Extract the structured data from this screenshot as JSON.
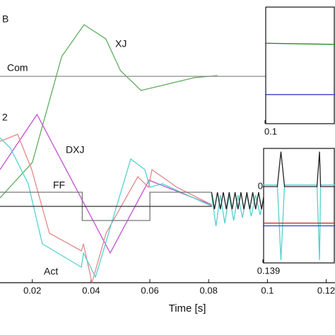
{
  "chart_data": [
    {
      "type": "line",
      "xlabel": "Time [s]",
      "xlim": [
        0.009,
        0.123
      ],
      "xticks": [
        0.02,
        0.04,
        0.06,
        0.08,
        0.1,
        0.12
      ],
      "ylim": [
        0,
        1
      ],
      "yticks": [],
      "labels": [
        "XJ",
        "Com",
        "DXJ",
        "FF",
        "Act",
        "2",
        "B"
      ],
      "series": [
        {
          "color": "#5fae5f",
          "x": [
            0.009,
            0.02,
            0.03,
            0.0376,
            0.045,
            0.05,
            0.057,
            0.065,
            0.075,
            0.083
          ],
          "values": [
            0.3,
            0.425,
            0.8,
            0.9125,
            0.8625,
            0.75,
            0.68,
            0.7,
            0.725,
            0.7325
          ]
        },
        {
          "color": "#8a8a8a",
          "x": [
            0.009,
            0.1
          ],
          "values": [
            0.73,
            0.73
          ]
        },
        {
          "color": "#c050d0",
          "x": [
            0.009,
            0.0216,
            0.0465,
            0.0597,
            0.081
          ],
          "values": [
            0.4,
            0.595,
            0.105,
            0.3625,
            0.275
          ]
        },
        {
          "color": "#e08a8a",
          "x": [
            0.009,
            0.015,
            0.0198,
            0.0258,
            0.0367,
            0.0374,
            0.0403,
            0.0451,
            0.0559,
            0.0595,
            0.0607,
            0.0692,
            0.0812
          ],
          "values": [
            0.5,
            0.525,
            0.4,
            0.175,
            0.1125,
            0.1375,
            0,
            0.175,
            0.375,
            0.3375,
            0.4,
            0.3375,
            0.275
          ]
        },
        {
          "color": "#55d0d0",
          "x": [
            0.009,
            0.0126,
            0.0186,
            0.0234,
            0.0367,
            0.0374,
            0.0415,
            0.0535,
            0.0583,
            0.06,
            0.0643,
            0.0812
          ],
          "values": [
            0.5125,
            0.475,
            0.35,
            0.1375,
            0.055,
            0.105,
            0.02,
            0.4375,
            0.4,
            0.3375,
            0.35,
            0.27
          ]
        },
        {
          "color": "#777777",
          "x": [
            0.009,
            0.037,
            0.037,
            0.06,
            0.06,
            0.081
          ],
          "values": [
            0.32,
            0.32,
            0.22,
            0.22,
            0.32,
            0.32
          ]
        },
        {
          "color": "#333333",
          "x": [
            0.009,
            0.081
          ],
          "values": [
            0.27,
            0.27
          ]
        },
        {
          "color": "#55d0d0",
          "x": [
            0.081,
            0.0825,
            0.084,
            0.0855,
            0.087,
            0.0885,
            0.09,
            0.0915,
            0.093,
            0.0945,
            0.096,
            0.0975,
            0.099
          ],
          "values": [
            0.31,
            0.2,
            0.31,
            0.21,
            0.31,
            0.22,
            0.31,
            0.23,
            0.31,
            0.235,
            0.31,
            0.24,
            0.31
          ]
        },
        {
          "color": "#222222",
          "x": [
            0.081,
            0.082,
            0.083,
            0.084,
            0.085,
            0.086,
            0.087,
            0.088,
            0.089,
            0.09,
            0.091,
            0.092,
            0.093,
            0.094,
            0.095,
            0.096,
            0.097,
            0.098,
            0.099
          ],
          "values": [
            0.32,
            0.26,
            0.32,
            0.26,
            0.32,
            0.26,
            0.32,
            0.26,
            0.32,
            0.26,
            0.32,
            0.26,
            0.32,
            0.26,
            0.32,
            0.26,
            0.32,
            0.26,
            0.32
          ]
        }
      ]
    },
    {
      "type": "line",
      "xlim": [
        0.1,
        0.112
      ],
      "xticks": [
        0.1
      ],
      "ylim": [
        0,
        1
      ],
      "yticks": [],
      "series": [
        {
          "color": "#2a8a2a",
          "x": [
            0.1,
            0.112
          ],
          "values": [
            0.69,
            0.68
          ]
        },
        {
          "color": "#3040c0",
          "x": [
            0.1,
            0.112
          ],
          "values": [
            0.25,
            0.25
          ]
        }
      ]
    },
    {
      "type": "line",
      "xlim": [
        0.139,
        0.141
      ],
      "xticks": [
        0.139
      ],
      "ylim": [
        -1.4,
        0.7
      ],
      "yticks": [
        0
      ],
      "series": [
        {
          "color": "#55d0d0",
          "x": [
            0.139,
            0.1394,
            0.1395,
            0.1396,
            0.1405,
            0.14057,
            0.1406,
            0.141
          ],
          "values": [
            0.03,
            0.03,
            -1.35,
            0.03,
            0.03,
            -1.35,
            0.03,
            0.03
          ]
        },
        {
          "color": "#222222",
          "x": [
            0.139,
            0.1394,
            0.1395,
            0.1396,
            0.1405,
            0.14057,
            0.1406,
            0.141
          ],
          "values": [
            0,
            0,
            0.64,
            0,
            0,
            0.64,
            0,
            0
          ]
        },
        {
          "color": "#d03030",
          "x": [
            0.139,
            0.141
          ],
          "values": [
            -0.67,
            -0.67
          ]
        },
        {
          "color": "#3040c0",
          "x": [
            0.139,
            0.141
          ],
          "values": [
            -0.72,
            -0.72
          ]
        }
      ]
    }
  ]
}
